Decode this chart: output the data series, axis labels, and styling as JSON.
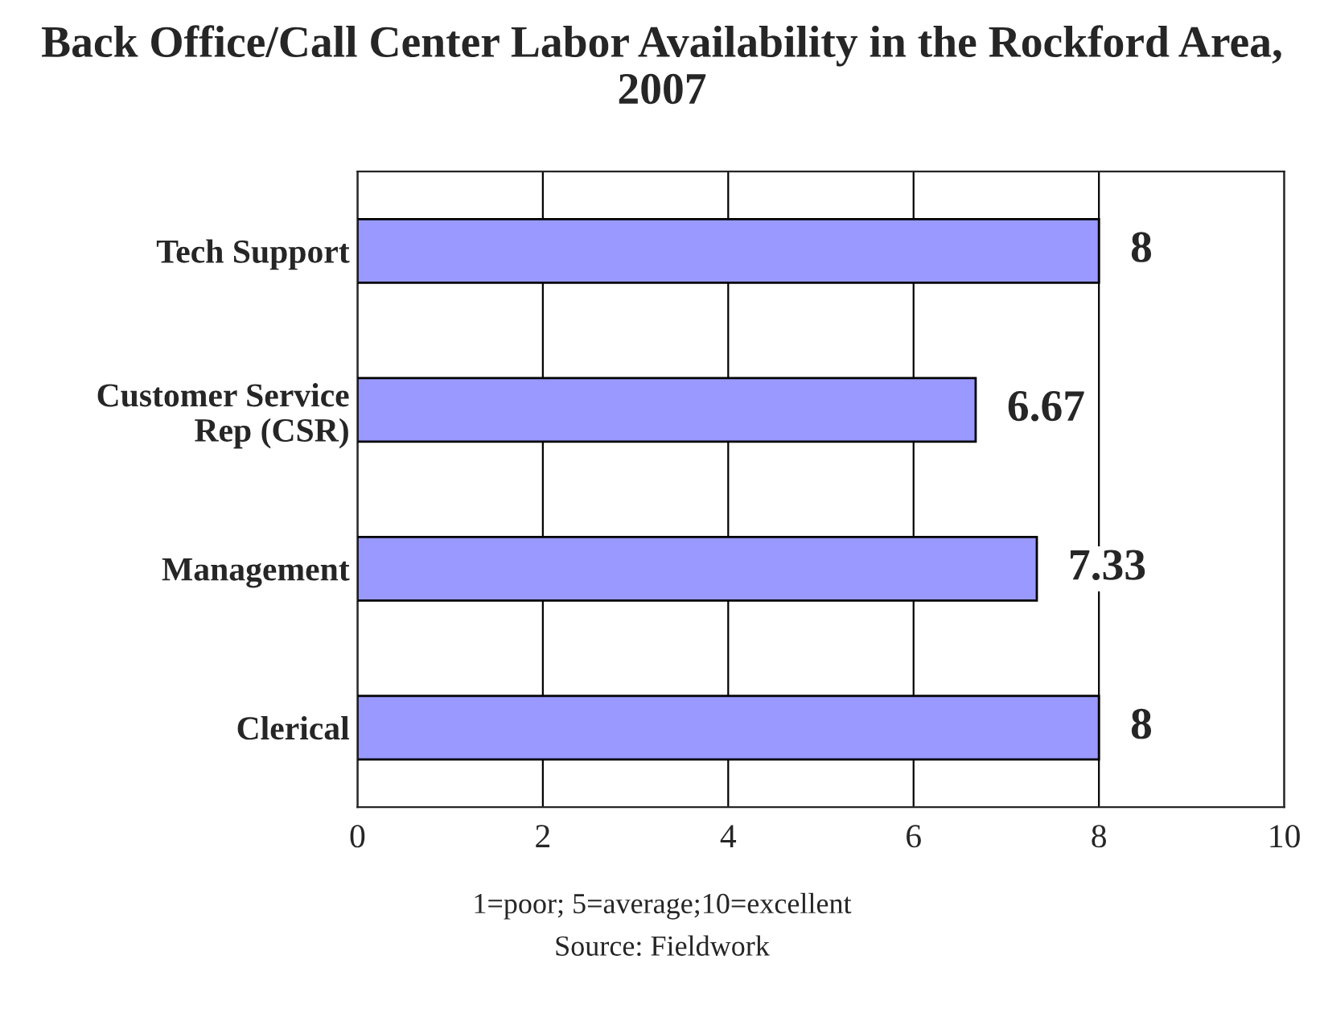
{
  "chart_data": {
    "type": "bar",
    "orientation": "horizontal",
    "title": "Back Office/Call Center Labor Availability in the Rockford Area, 2007",
    "categories": [
      "Tech Support",
      "Customer Service Rep (CSR)",
      "Management",
      "Clerical"
    ],
    "values": [
      8,
      6.67,
      7.33,
      8
    ],
    "color": "#9999ff",
    "xlim": [
      0,
      10
    ],
    "xticks": [
      0,
      2,
      4,
      6,
      8,
      10
    ],
    "grid": "x",
    "data_labels": true,
    "annotations": [
      "1=poor; 5=average;10=excellent",
      "Source: Fieldwork"
    ]
  }
}
